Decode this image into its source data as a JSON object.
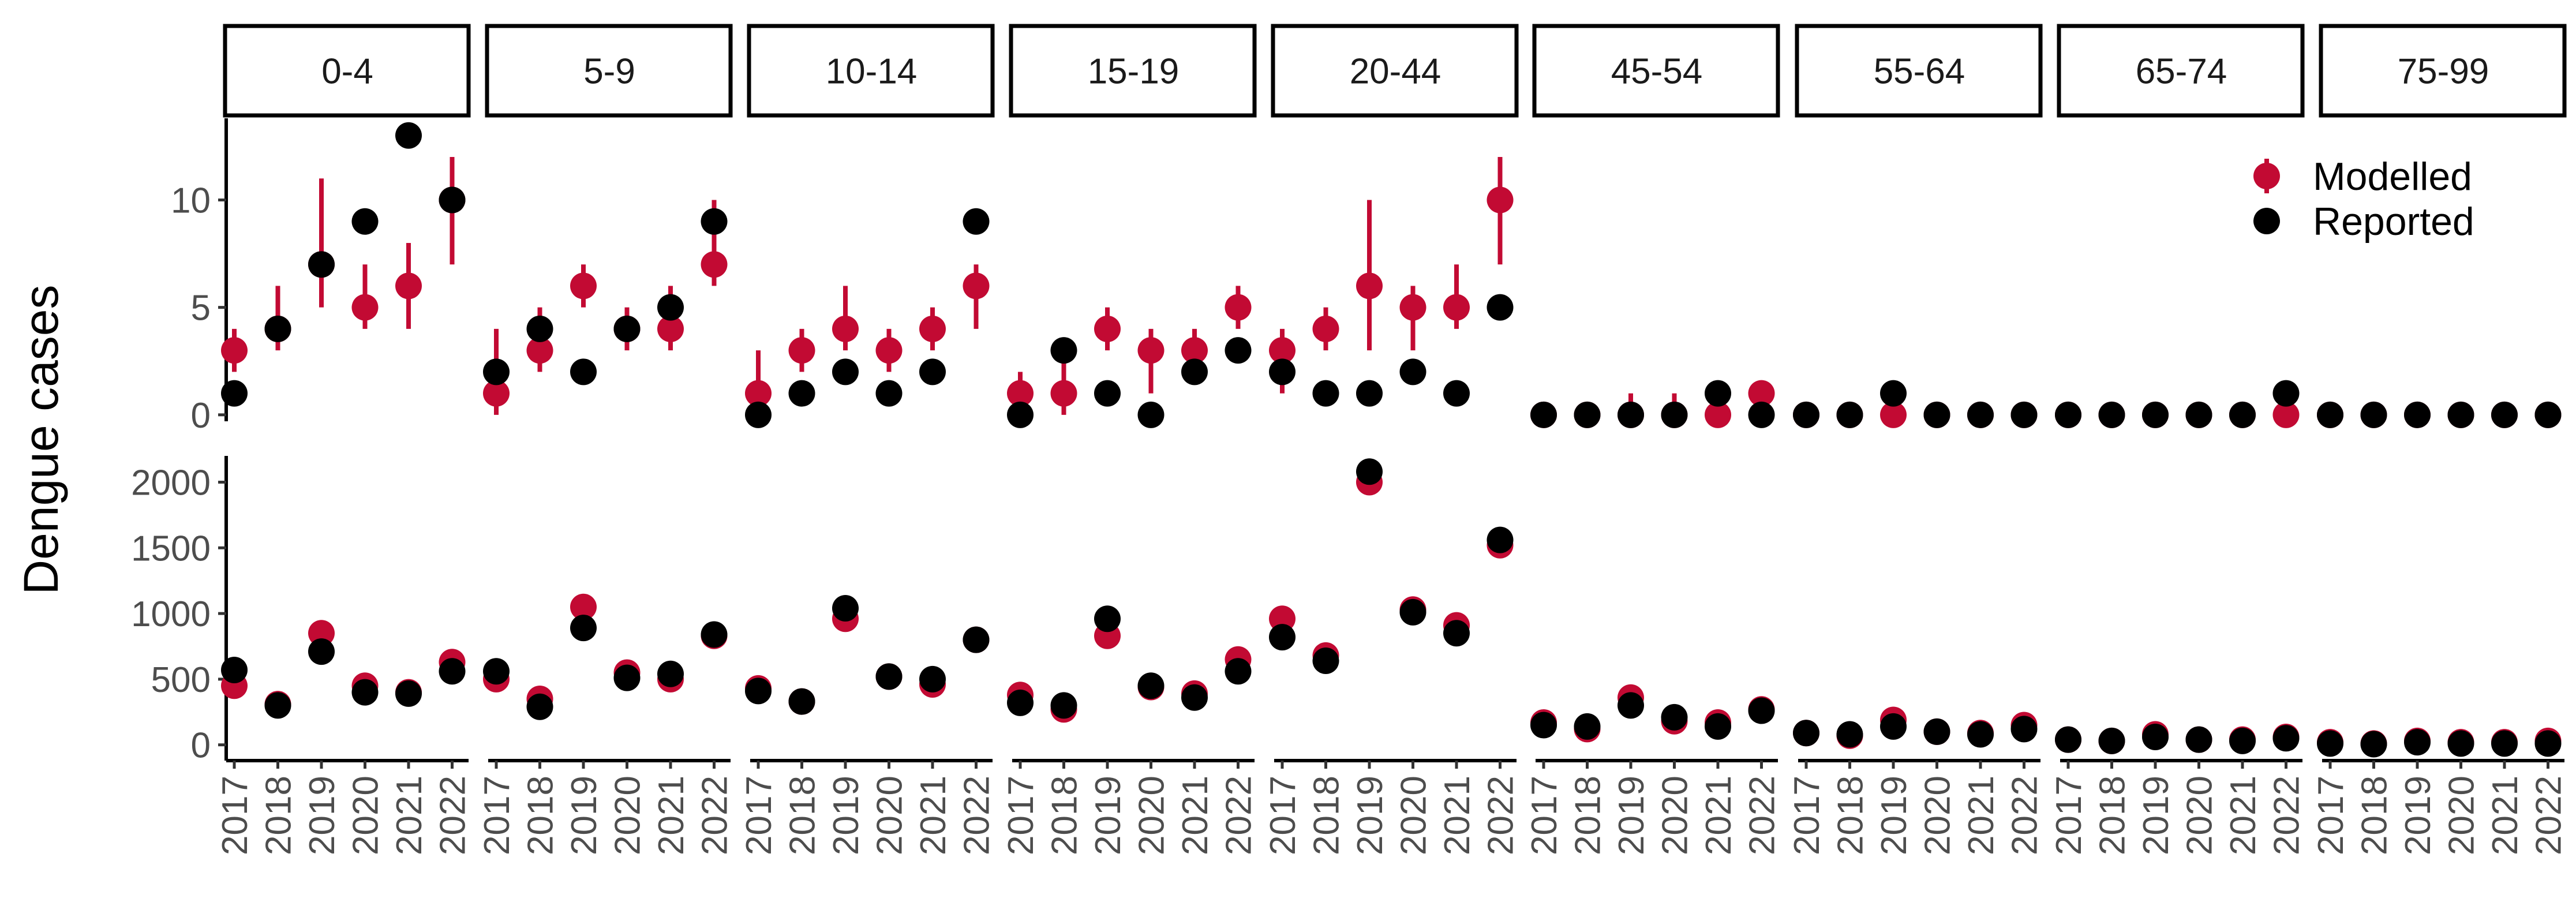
{
  "chart_data": {
    "type": "scatter",
    "ylabel": "Dengue cases",
    "facets": [
      "0-4",
      "5-9",
      "10-14",
      "15-19",
      "20-44",
      "45-54",
      "55-64",
      "65-74",
      "75-99"
    ],
    "years": [
      "2017",
      "2018",
      "2019",
      "2020",
      "2021",
      "2022"
    ],
    "legend": {
      "position": "top-right",
      "entries": [
        {
          "name": "Modelled",
          "color": "#c20a33"
        },
        {
          "name": "Reported",
          "color": "#000000"
        }
      ]
    },
    "rows": [
      {
        "yticks": [
          "0",
          "5",
          "10"
        ],
        "ylim": [
          -0.3,
          13.8
        ],
        "tick_values": [
          0,
          5,
          10
        ],
        "modelled": [
          [
            {
              "v": 3,
              "lo": 2,
              "hi": 4
            },
            {
              "v": 4,
              "lo": 3,
              "hi": 6
            },
            {
              "v": 7,
              "lo": 5,
              "hi": 11
            },
            {
              "v": 5,
              "lo": 4,
              "hi": 7
            },
            {
              "v": 6,
              "lo": 4,
              "hi": 8
            },
            {
              "v": 10,
              "lo": 7,
              "hi": 12
            }
          ],
          [
            {
              "v": 1,
              "lo": 0,
              "hi": 4
            },
            {
              "v": 3,
              "lo": 2,
              "hi": 5
            },
            {
              "v": 6,
              "lo": 5,
              "hi": 7
            },
            {
              "v": 4,
              "lo": 3,
              "hi": 5
            },
            {
              "v": 4,
              "lo": 3,
              "hi": 6
            },
            {
              "v": 7,
              "lo": 6,
              "hi": 10
            }
          ],
          [
            {
              "v": 1,
              "lo": 0,
              "hi": 3
            },
            {
              "v": 3,
              "lo": 2,
              "hi": 4
            },
            {
              "v": 4,
              "lo": 3,
              "hi": 6
            },
            {
              "v": 3,
              "lo": 2,
              "hi": 4
            },
            {
              "v": 4,
              "lo": 3,
              "hi": 5
            },
            {
              "v": 6,
              "lo": 4,
              "hi": 7
            }
          ],
          [
            {
              "v": 1,
              "lo": 0,
              "hi": 2
            },
            {
              "v": 1,
              "lo": 0,
              "hi": 3
            },
            {
              "v": 4,
              "lo": 3,
              "hi": 5
            },
            {
              "v": 3,
              "lo": 1,
              "hi": 4
            },
            {
              "v": 3,
              "lo": 2,
              "hi": 4
            },
            {
              "v": 5,
              "lo": 4,
              "hi": 6
            }
          ],
          [
            {
              "v": 3,
              "lo": 1,
              "hi": 4
            },
            {
              "v": 4,
              "lo": 3,
              "hi": 5
            },
            {
              "v": 6,
              "lo": 3,
              "hi": 10
            },
            {
              "v": 5,
              "lo": 3,
              "hi": 6
            },
            {
              "v": 5,
              "lo": 4,
              "hi": 7
            },
            {
              "v": 10,
              "lo": 7,
              "hi": 12
            }
          ],
          [
            {
              "v": 0,
              "lo": 0,
              "hi": 0
            },
            {
              "v": 0,
              "lo": 0,
              "hi": 0
            },
            {
              "v": 0,
              "lo": 0,
              "hi": 1
            },
            {
              "v": 0,
              "lo": 0,
              "hi": 1
            },
            {
              "v": 0,
              "lo": 0,
              "hi": 0
            },
            {
              "v": 1,
              "lo": 0,
              "hi": 1
            }
          ],
          [
            {
              "v": 0,
              "lo": 0,
              "hi": 0
            },
            {
              "v": 0,
              "lo": 0,
              "hi": 0
            },
            {
              "v": 0,
              "lo": 0,
              "hi": 0
            },
            {
              "v": 0,
              "lo": 0,
              "hi": 0
            },
            {
              "v": 0,
              "lo": 0,
              "hi": 0
            },
            {
              "v": 0,
              "lo": 0,
              "hi": 0
            }
          ],
          [
            {
              "v": 0,
              "lo": 0,
              "hi": 0
            },
            {
              "v": 0,
              "lo": 0,
              "hi": 0
            },
            {
              "v": 0,
              "lo": 0,
              "hi": 0
            },
            {
              "v": 0,
              "lo": 0,
              "hi": 0
            },
            {
              "v": 0,
              "lo": 0,
              "hi": 0
            },
            {
              "v": 0,
              "lo": 0,
              "hi": 0
            }
          ],
          [
            {
              "v": 0,
              "lo": 0,
              "hi": 0
            },
            {
              "v": 0,
              "lo": 0,
              "hi": 0
            },
            {
              "v": 0,
              "lo": 0,
              "hi": 0
            },
            {
              "v": 0,
              "lo": 0,
              "hi": 0
            },
            {
              "v": 0,
              "lo": 0,
              "hi": 0
            },
            {
              "v": 0,
              "lo": 0,
              "hi": 0
            }
          ]
        ],
        "reported": [
          [
            1,
            4,
            7,
            9,
            13,
            10
          ],
          [
            2,
            4,
            2,
            4,
            5,
            9
          ],
          [
            0,
            1,
            2,
            1,
            2,
            9
          ],
          [
            0,
            3,
            1,
            0,
            2,
            3
          ],
          [
            2,
            1,
            1,
            2,
            1,
            5
          ],
          [
            0,
            0,
            0,
            0,
            1,
            0
          ],
          [
            0,
            0,
            1,
            0,
            0,
            0
          ],
          [
            0,
            0,
            0,
            0,
            0,
            1
          ],
          [
            0,
            0,
            0,
            0,
            0,
            0
          ]
        ]
      },
      {
        "yticks": [
          "0",
          "500",
          "1000",
          "1500",
          "2000"
        ],
        "ylim": [
          -120,
          2200
        ],
        "tick_values": [
          0,
          500,
          1000,
          1500,
          2000
        ],
        "modelled": [
          [
            {
              "v": 450
            },
            {
              "v": 310
            },
            {
              "v": 850
            },
            {
              "v": 450
            },
            {
              "v": 400
            },
            {
              "v": 630
            }
          ],
          [
            {
              "v": 500
            },
            {
              "v": 350
            },
            {
              "v": 1050
            },
            {
              "v": 550
            },
            {
              "v": 500
            },
            {
              "v": 830
            }
          ],
          [
            {
              "v": 430
            },
            {
              "v": 330
            },
            {
              "v": 960
            },
            {
              "v": 520
            },
            {
              "v": 460
            },
            {
              "v": 800
            }
          ],
          [
            {
              "v": 380
            },
            {
              "v": 270
            },
            {
              "v": 830
            },
            {
              "v": 440
            },
            {
              "v": 390
            },
            {
              "v": 650
            }
          ],
          [
            {
              "v": 960
            },
            {
              "v": 680
            },
            {
              "v": 2000
            },
            {
              "v": 1030
            },
            {
              "v": 910
            },
            {
              "v": 1520
            }
          ],
          [
            {
              "v": 170
            },
            {
              "v": 120
            },
            {
              "v": 360
            },
            {
              "v": 180
            },
            {
              "v": 170
            },
            {
              "v": 270
            }
          ],
          [
            {
              "v": 90
            },
            {
              "v": 70
            },
            {
              "v": 190
            },
            {
              "v": 100
            },
            {
              "v": 90
            },
            {
              "v": 150
            }
          ],
          [
            {
              "v": 40
            },
            {
              "v": 30
            },
            {
              "v": 80
            },
            {
              "v": 40
            },
            {
              "v": 40
            },
            {
              "v": 60
            }
          ],
          [
            {
              "v": 20
            },
            {
              "v": 10
            },
            {
              "v": 30
            },
            {
              "v": 20
            },
            {
              "v": 20
            },
            {
              "v": 30
            }
          ]
        ],
        "reported": [
          [
            570,
            300,
            710,
            400,
            390,
            560
          ],
          [
            560,
            290,
            890,
            510,
            540,
            840
          ],
          [
            410,
            330,
            1040,
            520,
            500,
            800
          ],
          [
            320,
            300,
            960,
            450,
            360,
            560
          ],
          [
            820,
            640,
            2080,
            1010,
            850,
            1560
          ],
          [
            150,
            140,
            300,
            210,
            140,
            260
          ],
          [
            90,
            80,
            140,
            100,
            80,
            120
          ],
          [
            40,
            30,
            60,
            40,
            30,
            50
          ],
          [
            10,
            5,
            20,
            10,
            10,
            10
          ]
        ]
      }
    ]
  }
}
